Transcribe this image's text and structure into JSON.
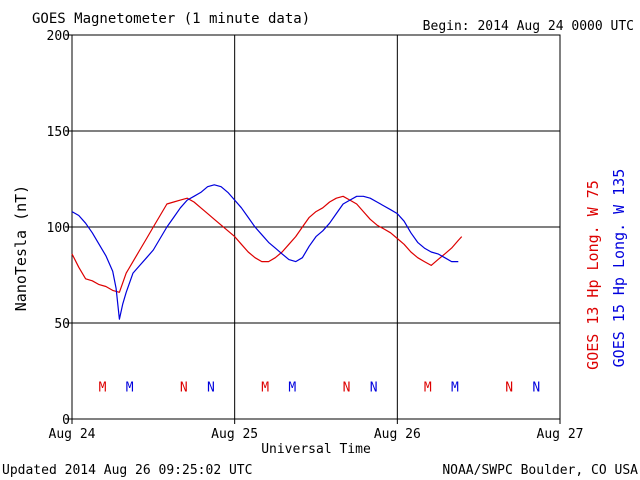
{
  "header": {
    "title": "GOES Magnetometer (1 minute data)",
    "begin": "Begin:  2014 Aug 24 0000 UTC"
  },
  "footer": {
    "updated": "Updated 2014 Aug 26 09:25:02 UTC",
    "credit": "NOAA/SWPC Boulder, CO USA"
  },
  "colors": {
    "goes13": "#dd0000",
    "goes15": "#0000dd",
    "axis": "#000000",
    "grid": "#000000"
  },
  "chart_data": {
    "type": "line",
    "xlabel": "Universal Time",
    "ylabel": "NanoTesla (nT)",
    "xlim": [
      0,
      72
    ],
    "ylim": [
      0,
      200
    ],
    "x_unit": "hours since 2014 Aug 24 0000 UTC",
    "x_ticks": [
      {
        "x": 0,
        "label": "Aug 24"
      },
      {
        "x": 24,
        "label": "Aug 25"
      },
      {
        "x": 48,
        "label": "Aug 26"
      },
      {
        "x": 72,
        "label": "Aug 27"
      }
    ],
    "y_ticks": [
      0,
      50,
      100,
      150,
      200
    ],
    "grid": true,
    "series": [
      {
        "name": "GOES 13 Hp  Long. W 75",
        "color": "#dd0000",
        "x": [
          0,
          1,
          2,
          3,
          4,
          5,
          6,
          7,
          7.5,
          8,
          9,
          10,
          11,
          12,
          13,
          14,
          15,
          16,
          17,
          18,
          19,
          20,
          21,
          22,
          23,
          24,
          25,
          26,
          27,
          28,
          29,
          30,
          31,
          32,
          33,
          34,
          35,
          36,
          37,
          38,
          39,
          40,
          41,
          42,
          43,
          44,
          45,
          46,
          47,
          48,
          49,
          50,
          51,
          52,
          53,
          54,
          55,
          56,
          57,
          57.5
        ],
        "values": [
          86,
          79,
          73,
          72,
          70,
          69,
          67,
          66,
          71,
          76,
          82,
          88,
          94,
          100,
          106,
          112,
          113,
          114,
          115,
          113,
          110,
          107,
          104,
          101,
          98,
          95,
          91,
          87,
          84,
          82,
          82,
          84,
          87,
          91,
          95,
          100,
          105,
          108,
          110,
          113,
          115,
          116,
          114,
          112,
          108,
          104,
          101,
          99,
          97,
          94,
          91,
          87,
          84,
          82,
          80,
          83,
          86,
          89,
          93,
          95
        ]
      },
      {
        "name": "GOES 15 Hp  Long. W 135",
        "color": "#0000dd",
        "x": [
          0,
          1,
          2,
          3,
          4,
          5,
          6,
          6.5,
          7,
          7.5,
          8,
          9,
          10,
          11,
          12,
          13,
          14,
          15,
          16,
          17,
          18,
          19,
          20,
          21,
          22,
          23,
          24,
          25,
          26,
          27,
          28,
          29,
          30,
          31,
          32,
          33,
          34,
          35,
          36,
          37,
          38,
          39,
          40,
          41,
          42,
          43,
          44,
          45,
          46,
          47,
          48,
          49,
          50,
          51,
          52,
          53,
          54,
          55,
          56,
          57
        ],
        "values": [
          108,
          106,
          102,
          97,
          91,
          85,
          77,
          68,
          52,
          60,
          66,
          76,
          80,
          84,
          88,
          94,
          100,
          105,
          110,
          114,
          116,
          118,
          121,
          122,
          121,
          118,
          114,
          110,
          105,
          100,
          96,
          92,
          89,
          86,
          83,
          82,
          84,
          90,
          95,
          98,
          102,
          107,
          112,
          114,
          116,
          116,
          115,
          113,
          111,
          109,
          107,
          103,
          97,
          92,
          89,
          87,
          86,
          84,
          82,
          82
        ]
      }
    ],
    "annotations": {
      "y": 17,
      "markers": [
        {
          "label": "M",
          "x": 4.5,
          "color": "#dd0000"
        },
        {
          "label": "M",
          "x": 8.5,
          "color": "#0000dd"
        },
        {
          "label": "N",
          "x": 16.5,
          "color": "#dd0000"
        },
        {
          "label": "N",
          "x": 20.5,
          "color": "#0000dd"
        },
        {
          "label": "M",
          "x": 28.5,
          "color": "#dd0000"
        },
        {
          "label": "M",
          "x": 32.5,
          "color": "#0000dd"
        },
        {
          "label": "N",
          "x": 40.5,
          "color": "#dd0000"
        },
        {
          "label": "N",
          "x": 44.5,
          "color": "#0000dd"
        },
        {
          "label": "M",
          "x": 52.5,
          "color": "#dd0000"
        },
        {
          "label": "M",
          "x": 56.5,
          "color": "#0000dd"
        },
        {
          "label": "N",
          "x": 64.5,
          "color": "#dd0000"
        },
        {
          "label": "N",
          "x": 68.5,
          "color": "#0000dd"
        }
      ]
    }
  }
}
